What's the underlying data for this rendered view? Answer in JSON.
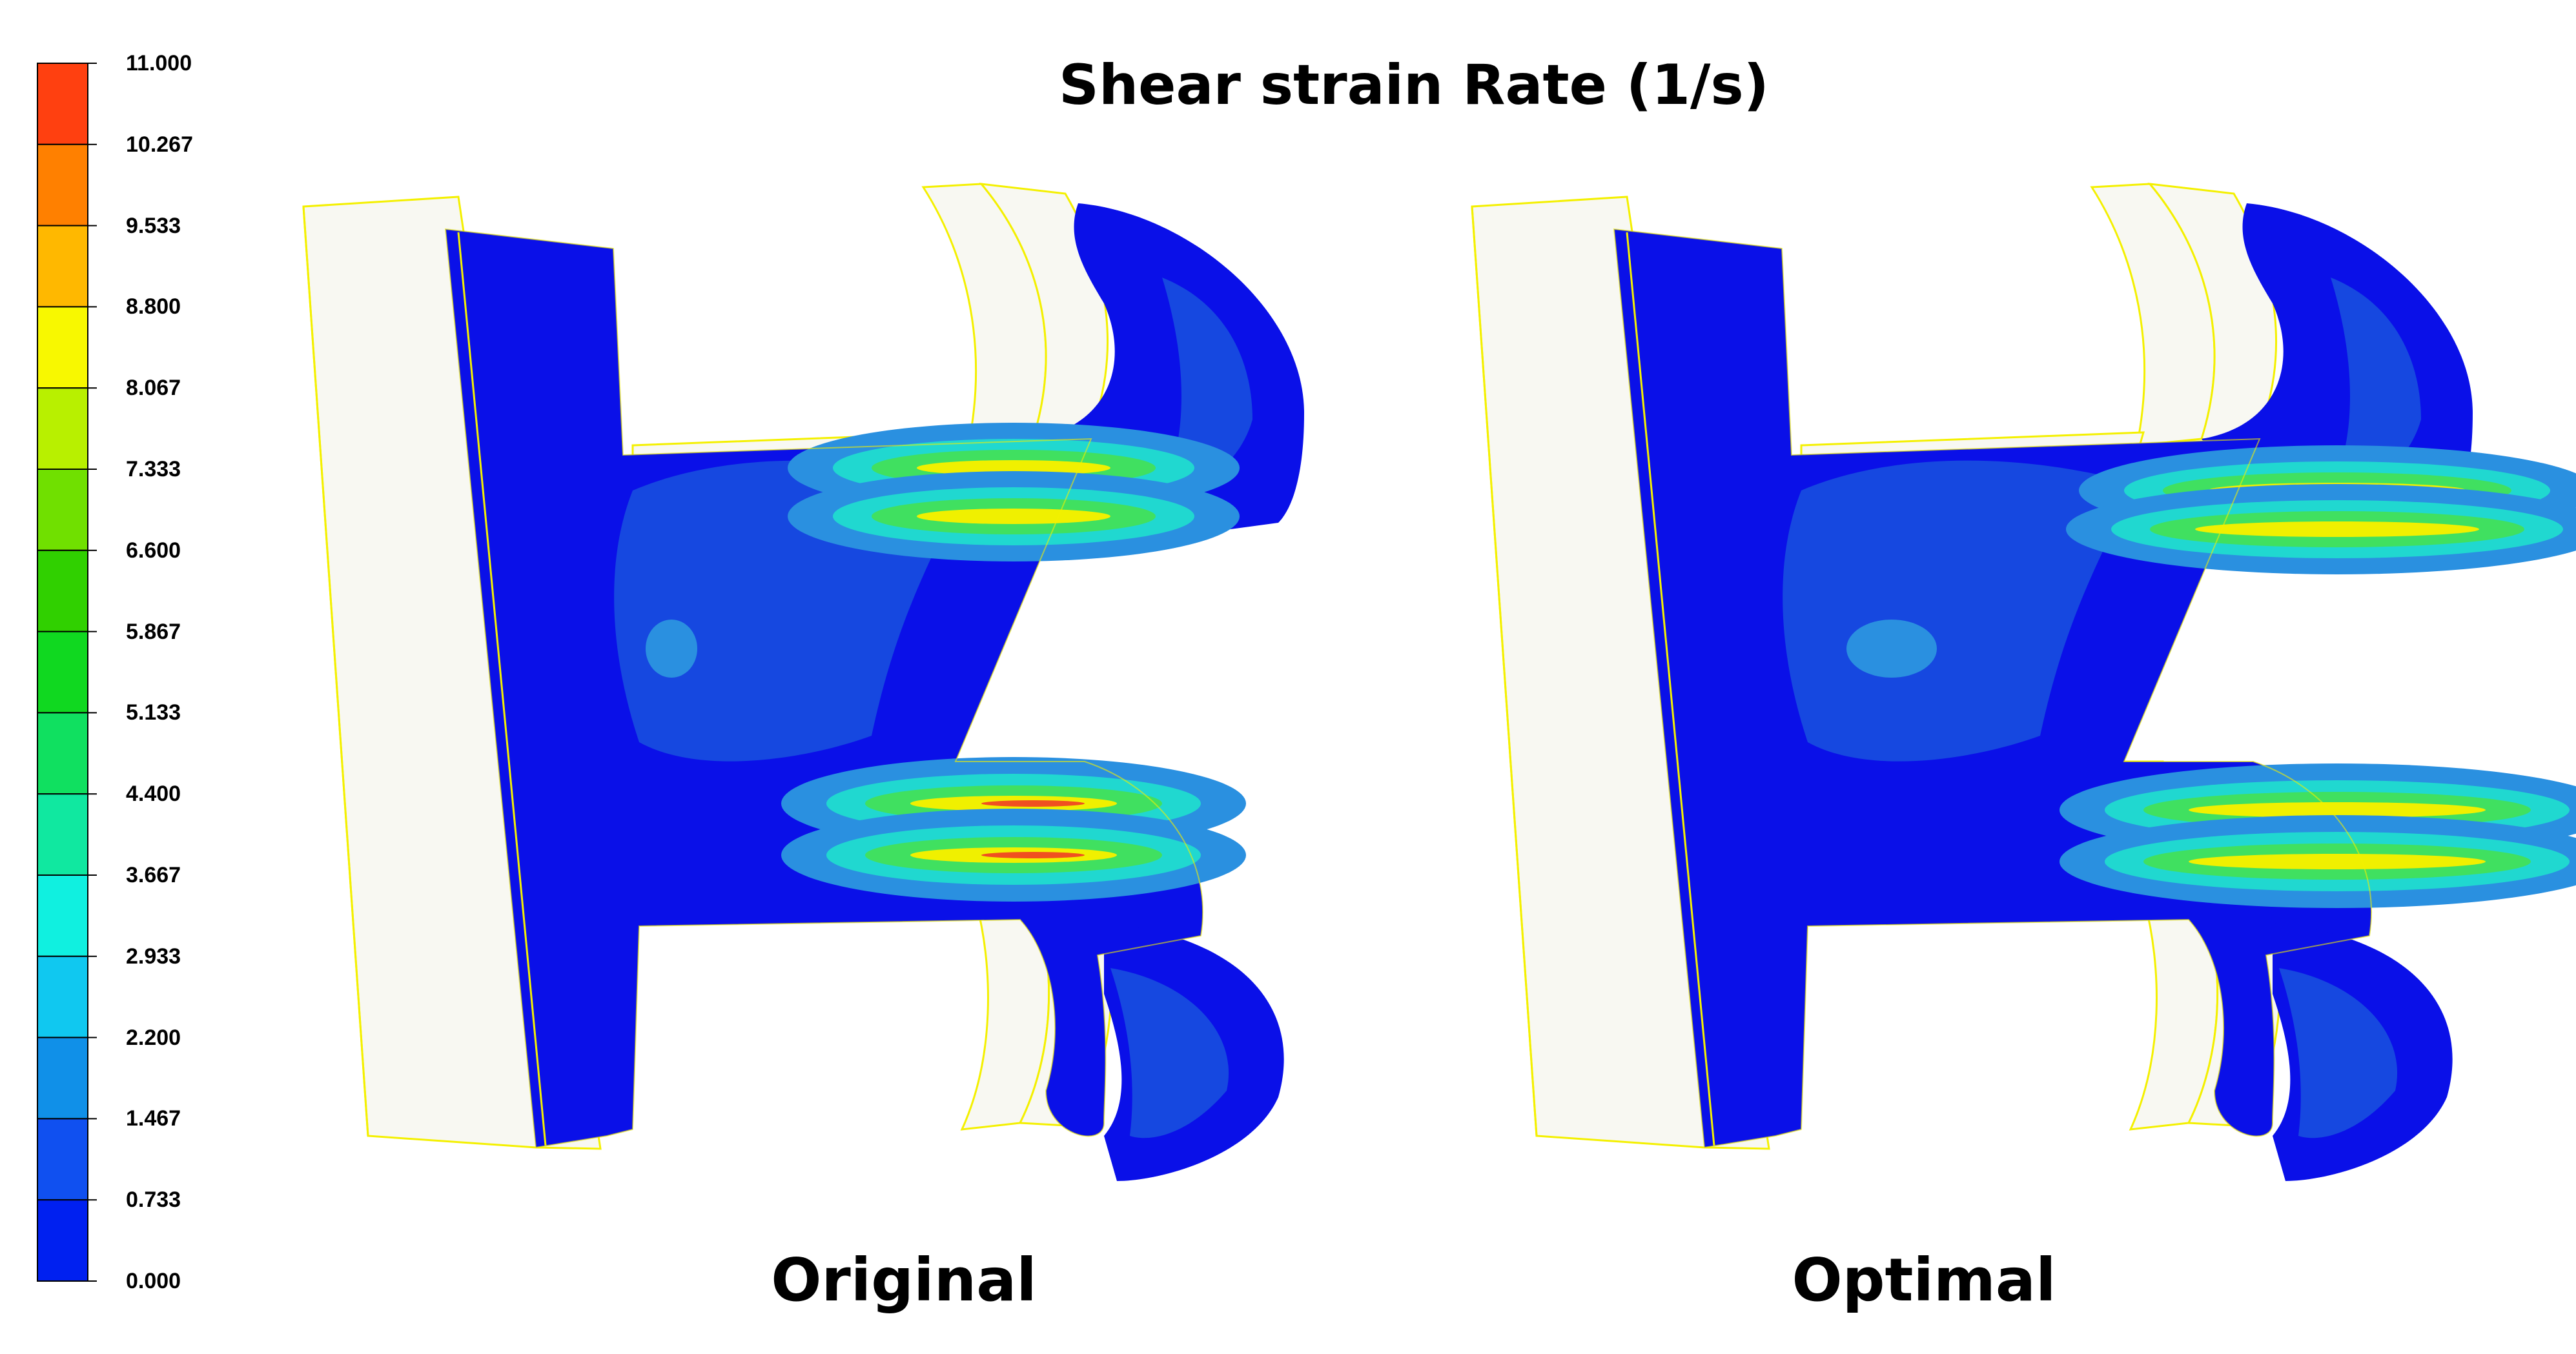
{
  "title": "Shear strain Rate (1/s)",
  "colorbar": {
    "labels": [
      "11.000",
      "10.267",
      "9.533",
      "8.800",
      "8.067",
      "7.333",
      "6.600",
      "5.867",
      "5.133",
      "4.400",
      "3.667",
      "2.933",
      "2.200",
      "1.467",
      "0.733",
      "0.000"
    ],
    "colors": [
      "#ff4010",
      "#ff8000",
      "#ffb800",
      "#f8f800",
      "#b8f000",
      "#70e000",
      "#30d000",
      "#10d820",
      "#10e060",
      "#10e8a0",
      "#10f0e0",
      "#10c8f0",
      "#1090e8",
      "#1050f0",
      "#0020f0"
    ]
  },
  "panels": [
    {
      "caption": "Original"
    },
    {
      "caption": "Optimal"
    }
  ],
  "colors": {
    "outline": "#f4f000",
    "shell_fill": "#f8f8f2",
    "base": "#0a10e8",
    "low": "#1648e0",
    "mid": "#2a90e0",
    "cyan": "#20d8d0",
    "green": "#40e060",
    "yellow": "#f0f000",
    "red": "#f05020"
  }
}
